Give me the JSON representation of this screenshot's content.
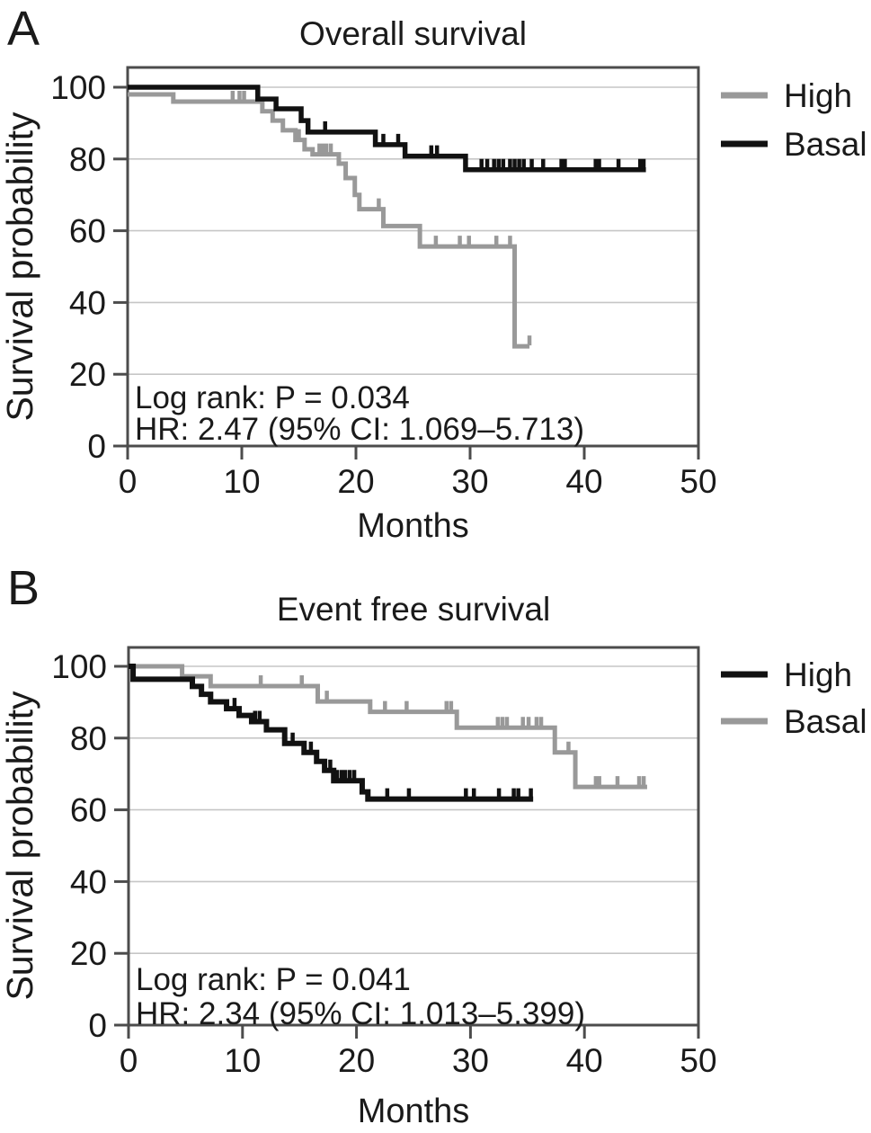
{
  "figure": {
    "background": "#ffffff",
    "frame_color": "#4c4c4c",
    "grid_color": "#c6c6c6",
    "text_color": "#1a1a1a",
    "gray_series_color": "#999999",
    "black_series_color": "#111111"
  },
  "chart_data": [
    {
      "panel_label": "A",
      "type": "line",
      "subtype": "kaplan-meier-step",
      "title": "Overall survival",
      "xlabel": "Months",
      "ylabel": "Survival probability",
      "xlim": [
        0,
        50
      ],
      "ylim": [
        0,
        100
      ],
      "xticks": [
        0,
        10,
        20,
        30,
        40,
        50
      ],
      "yticks": [
        0,
        20,
        40,
        60,
        80,
        100
      ],
      "grid": true,
      "legend_position": "right",
      "annotation_lines": [
        "Log rank: P = 0.034",
        "HR: 2.47 (95% CI: 1.069–5.713)"
      ],
      "legend": [
        {
          "label": "High",
          "color": "#999999"
        },
        {
          "label": "Basal",
          "color": "#111111"
        }
      ],
      "series": [
        {
          "name": "High",
          "color": "#999999",
          "width": 5,
          "points": [
            [
              0,
              98
            ],
            [
              4,
              96
            ],
            [
              11.8,
              93.3
            ],
            [
              12.7,
              90.7
            ],
            [
              13.6,
              88
            ],
            [
              14.7,
              85.3
            ],
            [
              15.5,
              82.7
            ],
            [
              16.2,
              81.3
            ],
            [
              18.5,
              78.7
            ],
            [
              19.1,
              74.7
            ],
            [
              19.9,
              70
            ],
            [
              20.3,
              66
            ],
            [
              22.4,
              61.3
            ],
            [
              25.6,
              55.6
            ],
            [
              33.9,
              27.8
            ]
          ],
          "end": 35.2,
          "censors": [
            [
              9.2,
              96
            ],
            [
              9.8,
              96
            ],
            [
              10.2,
              96
            ],
            [
              15.0,
              85.3
            ],
            [
              16.8,
              81.3
            ],
            [
              17.1,
              81.3
            ],
            [
              17.4,
              81.3
            ],
            [
              17.8,
              81.3
            ],
            [
              22.0,
              66
            ],
            [
              27.0,
              55.6
            ],
            [
              29.1,
              55.6
            ],
            [
              29.9,
              55.6
            ],
            [
              32.3,
              55.6
            ],
            [
              33.5,
              55.6
            ],
            [
              35.2,
              27.8
            ]
          ]
        },
        {
          "name": "Basal",
          "color": "#111111",
          "width": 5.5,
          "points": [
            [
              0,
              100
            ],
            [
              11.4,
              96.7
            ],
            [
              13.0,
              94
            ],
            [
              15.2,
              90.7
            ],
            [
              15.8,
              87.5
            ],
            [
              21.7,
              84
            ],
            [
              24.3,
              80.8
            ],
            [
              29.6,
              77
            ]
          ],
          "end": 45.4,
          "censors": [
            [
              17.3,
              87.5
            ],
            [
              22.4,
              84
            ],
            [
              23.7,
              84
            ],
            [
              26.6,
              80.8
            ],
            [
              27.1,
              80.8
            ],
            [
              31.0,
              77
            ],
            [
              31.5,
              77
            ],
            [
              32.1,
              77
            ],
            [
              32.5,
              77
            ],
            [
              32.9,
              77
            ],
            [
              33.5,
              77
            ],
            [
              33.9,
              77
            ],
            [
              34.3,
              77
            ],
            [
              34.7,
              77
            ],
            [
              35.4,
              77
            ],
            [
              36.4,
              77
            ],
            [
              38.0,
              77
            ],
            [
              38.3,
              77
            ],
            [
              41.0,
              77
            ],
            [
              41.3,
              77
            ],
            [
              43.0,
              77
            ],
            [
              44.9,
              77
            ],
            [
              45.2,
              77
            ]
          ]
        }
      ]
    },
    {
      "panel_label": "B",
      "type": "line",
      "subtype": "kaplan-meier-step",
      "title": "Event free survival",
      "xlabel": "Months",
      "ylabel": "Survival probability",
      "xlim": [
        0,
        50
      ],
      "ylim": [
        0,
        100
      ],
      "xticks": [
        0,
        10,
        20,
        30,
        40,
        50
      ],
      "yticks": [
        0,
        20,
        40,
        60,
        80,
        100
      ],
      "grid": true,
      "legend_position": "right",
      "annotation_lines": [
        "Log rank: P = 0.041",
        "HR: 2.34 (95% CI: 1.013–5.399)"
      ],
      "legend": [
        {
          "label": "High",
          "color": "#111111"
        },
        {
          "label": "Basal",
          "color": "#999999"
        }
      ],
      "series": [
        {
          "name": "Basal",
          "color": "#999999",
          "width": 5,
          "points": [
            [
              0,
              100
            ],
            [
              4.7,
              97.2
            ],
            [
              7.2,
              94.5
            ],
            [
              16.6,
              90.2
            ],
            [
              21.2,
              87.3
            ],
            [
              28.8,
              82.9
            ],
            [
              37.4,
              76
            ],
            [
              39.2,
              66.4
            ]
          ],
          "end": 45.5,
          "censors": [
            [
              11.6,
              94.5
            ],
            [
              15.2,
              94.5
            ],
            [
              17.4,
              90.2
            ],
            [
              22.5,
              87.3
            ],
            [
              24.4,
              87.3
            ],
            [
              27.9,
              87.3
            ],
            [
              28.3,
              87.3
            ],
            [
              32.4,
              82.9
            ],
            [
              32.8,
              82.9
            ],
            [
              33.2,
              82.9
            ],
            [
              34.6,
              82.9
            ],
            [
              35.1,
              82.9
            ],
            [
              35.8,
              82.9
            ],
            [
              36.2,
              82.9
            ],
            [
              38.6,
              76
            ],
            [
              41.0,
              66.4
            ],
            [
              41.3,
              66.4
            ],
            [
              42.9,
              66.4
            ],
            [
              44.8,
              66.4
            ],
            [
              45.2,
              66.4
            ]
          ]
        },
        {
          "name": "High",
          "color": "#111111",
          "width": 6,
          "points": [
            [
              0,
              100
            ],
            [
              0.4,
              96.4
            ],
            [
              5.6,
              94.4
            ],
            [
              6.4,
              92.2
            ],
            [
              7.2,
              90.1
            ],
            [
              8.6,
              88.2
            ],
            [
              9.7,
              86.3
            ],
            [
              10.8,
              84.6
            ],
            [
              12.1,
              82.3
            ],
            [
              13.7,
              78.5
            ],
            [
              15.4,
              76
            ],
            [
              16.5,
              73.5
            ],
            [
              17.2,
              71
            ],
            [
              18.0,
              68.1
            ],
            [
              20.5,
              65
            ],
            [
              21.0,
              63
            ]
          ],
          "end": 35.5,
          "censors": [
            [
              9.3,
              88.2
            ],
            [
              11.1,
              84.6
            ],
            [
              11.5,
              84.6
            ],
            [
              14.4,
              78.5
            ],
            [
              16.0,
              76
            ],
            [
              17.7,
              71
            ],
            [
              18.3,
              68.1
            ],
            [
              18.7,
              68.1
            ],
            [
              19.0,
              68.1
            ],
            [
              19.4,
              68.1
            ],
            [
              19.8,
              68.1
            ],
            [
              22.7,
              63
            ],
            [
              24.6,
              63
            ],
            [
              29.6,
              63
            ],
            [
              30.3,
              63
            ],
            [
              32.5,
              63
            ],
            [
              33.8,
              63
            ],
            [
              34.2,
              63
            ],
            [
              35.3,
              63
            ]
          ]
        }
      ]
    }
  ]
}
